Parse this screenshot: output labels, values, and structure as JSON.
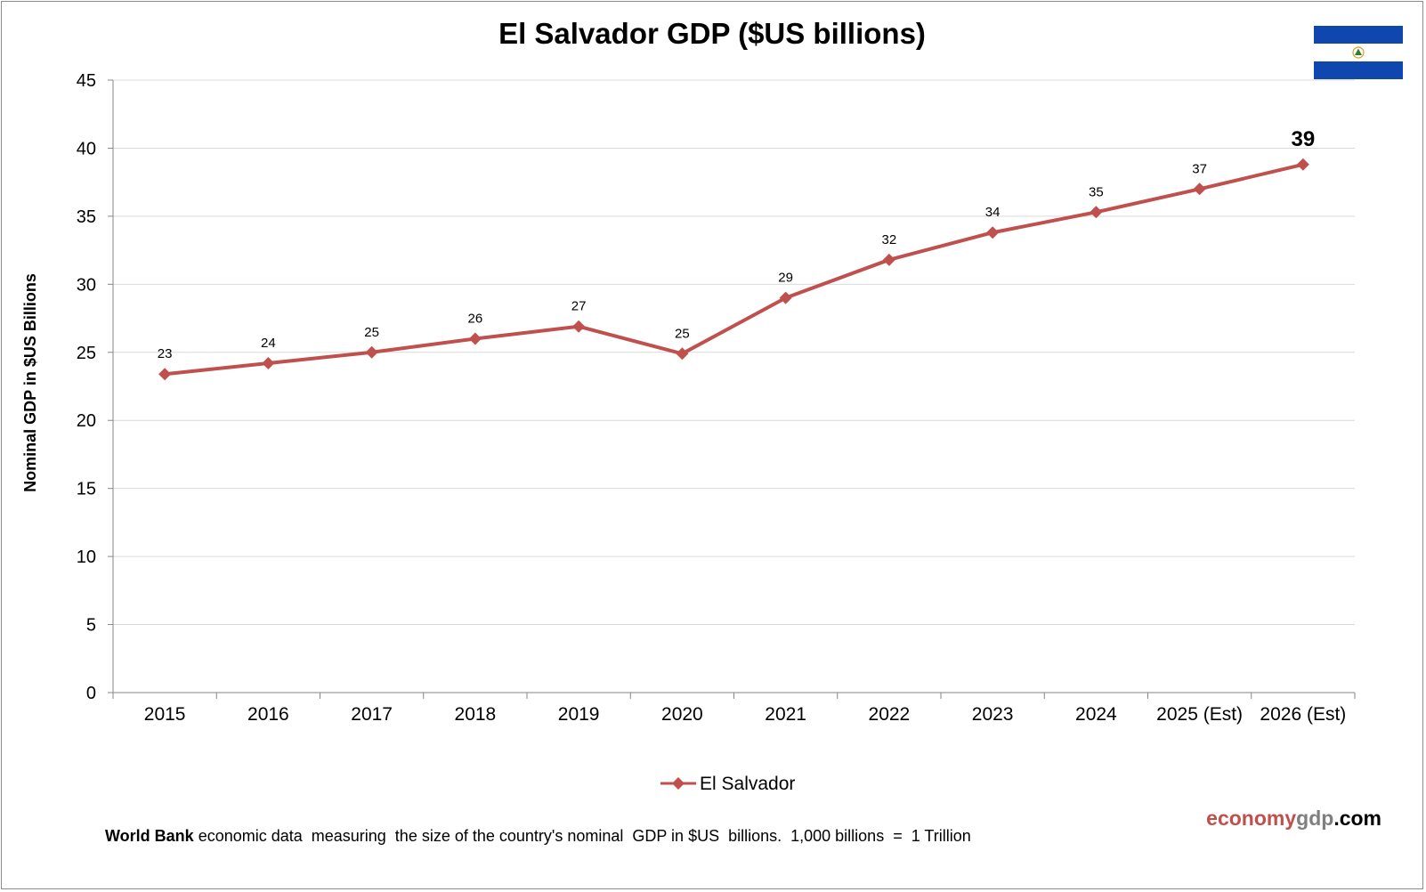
{
  "chart_data": {
    "type": "line",
    "title": "El Salvador GDP ($US billions)",
    "ylabel": "Nominal GDP in $US Billions",
    "xlabel": "",
    "ylim": [
      0,
      45
    ],
    "yticks": [
      0,
      5,
      10,
      15,
      20,
      25,
      30,
      35,
      40,
      45
    ],
    "categories": [
      "2015",
      "2016",
      "2017",
      "2018",
      "2019",
      "2020",
      "2021",
      "2022",
      "2023",
      "2024",
      "2025 (Est)",
      "2026 (Est)"
    ],
    "series": [
      {
        "name": "El Salvador",
        "color": "#c0504d",
        "values": [
          23.4,
          24.2,
          25.0,
          26.0,
          26.9,
          24.9,
          29.0,
          31.8,
          33.8,
          35.3,
          37.0,
          38.8
        ],
        "data_labels": [
          "23",
          "24",
          "25",
          "26",
          "27",
          "25",
          "29",
          "32",
          "34",
          "35",
          "37",
          "39"
        ]
      }
    ],
    "grid": true,
    "legend_position": "bottom"
  },
  "footer": {
    "source_bold": "World Bank",
    "text": " economic data  measuring  the size of the country's nominal  GDP in $US  billions.  1,000 billions  =  1 Trillion"
  },
  "brand": {
    "part1": "economy",
    "part2": "gdp",
    "part3": ".com"
  },
  "flag": {
    "blue": "#0f47af",
    "white": "#ffffff",
    "emblem": "coat-of-arms-icon"
  }
}
